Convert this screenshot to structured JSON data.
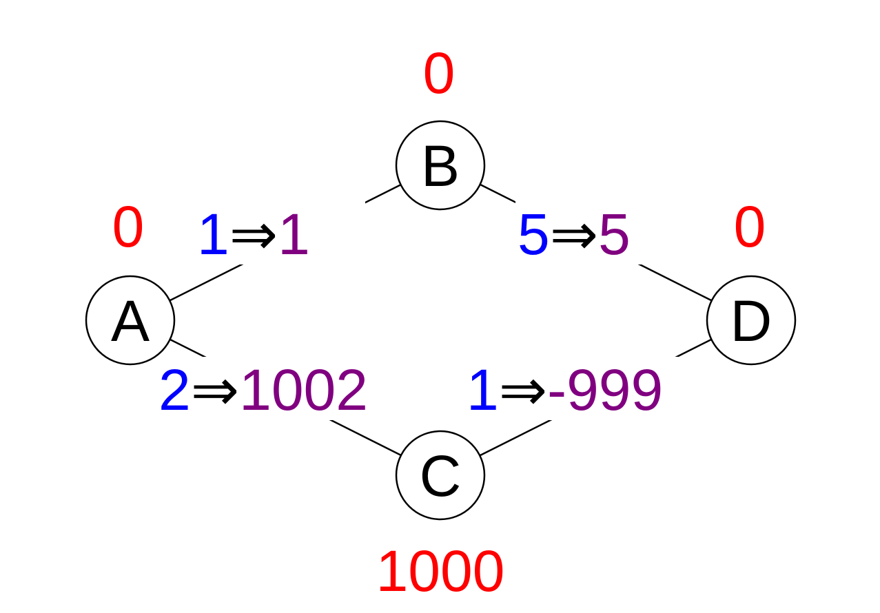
{
  "colors": {
    "potential": "#ff0000",
    "original_weight": "#0000ff",
    "reweighted": "#800080",
    "arrow": "#000000"
  },
  "nodes": {
    "A": {
      "label": "A",
      "potential": "0"
    },
    "B": {
      "label": "B",
      "potential": "0"
    },
    "C": {
      "label": "C",
      "potential": "1000"
    },
    "D": {
      "label": "D",
      "potential": "0"
    }
  },
  "edges": {
    "ab": {
      "weight": "1",
      "arrow": "⇒",
      "reweighted": "1"
    },
    "bd": {
      "weight": "5",
      "arrow": "⇒",
      "reweighted": "5"
    },
    "ac": {
      "weight": "2",
      "arrow": "⇒",
      "reweighted": "1002"
    },
    "cd": {
      "weight": "1",
      "arrow": "⇒",
      "reweighted": "-999"
    }
  }
}
